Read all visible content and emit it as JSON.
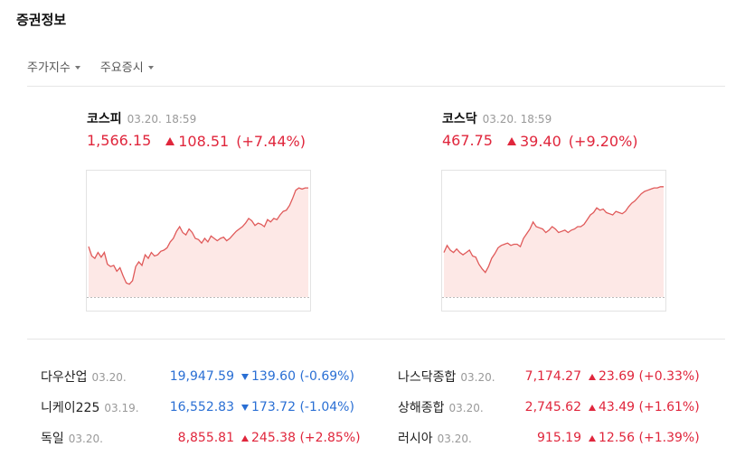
{
  "header": {
    "title": "증권정보"
  },
  "tabs": [
    {
      "label": "주가지수"
    },
    {
      "label": "주요증시"
    }
  ],
  "indices": [
    {
      "name": "코스피",
      "time": "03.20. 18:59",
      "price": "1,566.15",
      "change": "108.51",
      "pct": "(+7.44%)",
      "direction": "up",
      "chart": [
        0.43,
        0.35,
        0.33,
        0.38,
        0.34,
        0.38,
        0.28,
        0.26,
        0.27,
        0.22,
        0.25,
        0.18,
        0.12,
        0.11,
        0.14,
        0.26,
        0.3,
        0.27,
        0.36,
        0.33,
        0.38,
        0.35,
        0.36,
        0.39,
        0.4,
        0.42,
        0.47,
        0.5,
        0.56,
        0.6,
        0.55,
        0.53,
        0.58,
        0.55,
        0.5,
        0.49,
        0.46,
        0.5,
        0.47,
        0.52,
        0.5,
        0.48,
        0.5,
        0.51,
        0.48,
        0.5,
        0.53,
        0.56,
        0.58,
        0.6,
        0.63,
        0.67,
        0.65,
        0.61,
        0.63,
        0.62,
        0.6,
        0.66,
        0.64,
        0.67,
        0.66,
        0.7,
        0.73,
        0.74,
        0.78,
        0.84,
        0.91,
        0.93,
        0.92,
        0.93,
        0.93
      ]
    },
    {
      "name": "코스닥",
      "time": "03.20. 18:59",
      "price": "467.75",
      "change": "39.40",
      "pct": "(+9.20%)",
      "direction": "up",
      "chart": [
        0.38,
        0.44,
        0.4,
        0.38,
        0.41,
        0.38,
        0.36,
        0.38,
        0.4,
        0.35,
        0.34,
        0.28,
        0.24,
        0.21,
        0.26,
        0.33,
        0.37,
        0.42,
        0.44,
        0.45,
        0.46,
        0.44,
        0.45,
        0.45,
        0.43,
        0.5,
        0.54,
        0.58,
        0.64,
        0.6,
        0.59,
        0.58,
        0.55,
        0.57,
        0.6,
        0.58,
        0.55,
        0.56,
        0.57,
        0.55,
        0.57,
        0.58,
        0.6,
        0.6,
        0.62,
        0.66,
        0.7,
        0.72,
        0.76,
        0.74,
        0.75,
        0.72,
        0.71,
        0.7,
        0.73,
        0.72,
        0.71,
        0.73,
        0.77,
        0.8,
        0.82,
        0.85,
        0.88,
        0.9,
        0.91,
        0.92,
        0.93,
        0.93,
        0.94,
        0.94
      ]
    }
  ],
  "markets_left": [
    {
      "name": "다우산업",
      "date": "03.20.",
      "price": "19,947.59",
      "change": "139.60",
      "pct": "(-0.69%)",
      "direction": "down"
    },
    {
      "name": "니케이225",
      "date": "03.19.",
      "price": "16,552.83",
      "change": "173.72",
      "pct": "(-1.04%)",
      "direction": "down"
    },
    {
      "name": "독일",
      "date": "03.20.",
      "price": "8,855.81",
      "change": "245.38",
      "pct": "(+2.85%)",
      "direction": "up"
    }
  ],
  "markets_right": [
    {
      "name": "나스닥종합",
      "date": "03.20.",
      "price": "7,174.27",
      "change": "23.69",
      "pct": "(+0.33%)",
      "direction": "up"
    },
    {
      "name": "상해종합",
      "date": "03.20.",
      "price": "2,745.62",
      "change": "43.49",
      "pct": "(+1.61%)",
      "direction": "up"
    },
    {
      "name": "러시아",
      "date": "03.20.",
      "price": "915.19",
      "change": "12.56",
      "pct": "(+1.39%)",
      "direction": "up"
    }
  ],
  "colors": {
    "up": "#e0263c",
    "down": "#2a6fd4",
    "chart_line": "#e05a5a",
    "chart_fill": "#fde8e6"
  }
}
